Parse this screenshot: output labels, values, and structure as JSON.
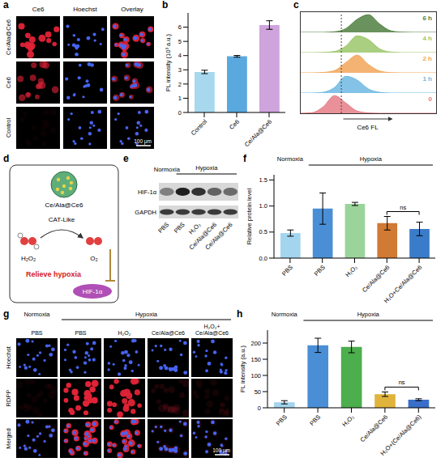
{
  "chart_data": [
    {
      "type": "bar",
      "ylabel": "PL intensity (10³ a.u.)",
      "categories": [
        "Control",
        "Ce6",
        "Ce/Ala@Ce6"
      ],
      "values": [
        2.85,
        3.95,
        6.15
      ],
      "errors": [
        0.12,
        0.06,
        0.3
      ],
      "colors": [
        "#a8d8ee",
        "#5aa9de",
        "#cfa3dc"
      ],
      "ylim": [
        0,
        7
      ],
      "yticks": [
        0,
        1,
        2,
        3,
        4,
        5,
        6
      ]
    },
    {
      "type": "area",
      "xlabel": "Ce6 FL",
      "x": [
        0,
        0.5,
        1,
        1.5,
        2,
        2.5,
        3,
        3.5,
        4,
        4.5,
        5,
        5.5,
        6
      ],
      "xlim": [
        0,
        6
      ],
      "ylim": [
        0,
        1
      ],
      "tick_labels": false,
      "gate": 1.8,
      "series": [
        {
          "name": "6 h",
          "color": "#4f7f3f",
          "values": [
            0,
            0,
            0,
            0.03,
            0.2,
            0.7,
            0.95,
            0.45,
            0.08,
            0.01,
            0,
            0,
            0
          ]
        },
        {
          "name": "4 h",
          "color": "#9cc76a",
          "values": [
            0,
            0,
            0.01,
            0.06,
            0.35,
            0.9,
            0.7,
            0.2,
            0.03,
            0,
            0,
            0,
            0
          ]
        },
        {
          "name": "2 h",
          "color": "#f2a65a",
          "values": [
            0,
            0,
            0.02,
            0.12,
            0.55,
            0.95,
            0.45,
            0.1,
            0.01,
            0,
            0,
            0,
            0
          ]
        },
        {
          "name": "1 h",
          "color": "#6fb9e3",
          "values": [
            0,
            0,
            0.04,
            0.3,
            0.9,
            0.7,
            0.22,
            0.04,
            0,
            0,
            0,
            0,
            0
          ]
        },
        {
          "name": "0",
          "color": "#e57c86",
          "values": [
            0,
            0.03,
            0.35,
            0.95,
            0.55,
            0.12,
            0.02,
            0,
            0,
            0,
            0,
            0,
            0
          ]
        }
      ]
    },
    {
      "type": "bar",
      "ylabel": "Relative protein level",
      "categories": [
        "PBS",
        "PBS",
        "H₂O₂",
        "Ce/Ala@Ce6",
        "H₂O+Ce/Ala@Ce6"
      ],
      "values": [
        0.48,
        0.95,
        1.04,
        0.67,
        0.56
      ],
      "errors": [
        0.06,
        0.3,
        0.03,
        0.13,
        0.13
      ],
      "colors": [
        "#a3d5ee",
        "#4a8fd6",
        "#9bd49b",
        "#d07a34",
        "#3a7cc9"
      ],
      "ylim": [
        0,
        1.6
      ],
      "yticks": [
        {
          "value": 0,
          "label": "0.0"
        },
        {
          "value": 0.5,
          "label": "0.5"
        },
        {
          "value": 1,
          "label": "1.0"
        },
        {
          "value": 1.5,
          "label": "1.5"
        }
      ],
      "annotations": [
        "Normoxia",
        "Hypoxia",
        "ns"
      ]
    },
    {
      "type": "bar",
      "ylabel": "PL intensity (a.u.)",
      "categories": [
        "PBS",
        "PBS",
        "H₂O₂",
        "Ce/Ala@Ce6",
        "H₂O+(Ce/Ala@Ce6)"
      ],
      "values": [
        17,
        193,
        188,
        42,
        25
      ],
      "errors": [
        5,
        22,
        18,
        7,
        3
      ],
      "colors": [
        "#a3d5ee",
        "#4a8fd6",
        "#4cae4c",
        "#e0b43c",
        "#3a6fc9"
      ],
      "ylim": [
        0,
        240
      ],
      "yticks": [
        0,
        50,
        100,
        150,
        200
      ],
      "annotations": [
        "Normoxia",
        "Hypoxia",
        "ns"
      ]
    }
  ],
  "figure": {
    "letters": [
      "a",
      "b",
      "c",
      "d",
      "e",
      "f",
      "g",
      "h"
    ],
    "a": {
      "columns": [
        "Ce6",
        "Hoechst",
        "Overlay"
      ],
      "rows": [
        "Ce/Ala@Ce6",
        "Ce6",
        "Control"
      ],
      "scale_bar": "100 μm"
    },
    "d": {
      "particle": "Ce/Ala@Ce6",
      "reaction": "CAT-Like",
      "substrate": "H₂O₂",
      "product": "O₂",
      "effect": "Relieve hypoxia",
      "target": "HIF-1α"
    },
    "e": {
      "groups": [
        "Normoxia",
        "Hypoxia"
      ],
      "proteins": [
        "HIF-1α",
        "GAPDH"
      ],
      "lanes": [
        "PBS",
        "PBS",
        "H₂O₂",
        "Ce/Ala@Ce6",
        "Ce/Ala@Ce6"
      ]
    },
    "g": {
      "groups": [
        "Normoxia",
        "Hypoxia"
      ],
      "columns": [
        "PBS",
        "PBS",
        "H₂O₂",
        "Ce/Ala@Ce6",
        "H₂O₂+Ce/Ala@Ce6"
      ],
      "rows": [
        "Hoechst",
        "RDPP",
        "Merged"
      ],
      "scale_bar": "100 μm"
    }
  }
}
